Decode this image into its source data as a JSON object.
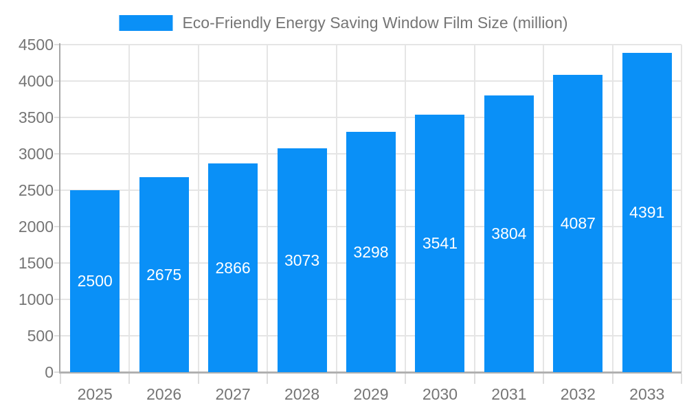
{
  "legend": {
    "label": "Eco-Friendly Energy Saving Window Film Size (million)"
  },
  "chart_data": {
    "type": "bar",
    "title": "Eco-Friendly Energy Saving Window Film Size (million)",
    "categories": [
      "2025",
      "2026",
      "2027",
      "2028",
      "2029",
      "2030",
      "2031",
      "2032",
      "2033"
    ],
    "values": [
      2500,
      2675,
      2866,
      3073,
      3298,
      3541,
      3804,
      4087,
      4391
    ],
    "xlabel": "",
    "ylabel": "",
    "ylim": [
      0,
      4500
    ],
    "yticks": [
      0,
      500,
      1000,
      1500,
      2000,
      2500,
      3000,
      3500,
      4000,
      4500
    ],
    "grid": true,
    "legend_position": "top",
    "bar_color": "#0a90f7",
    "bar_label_color": "#ffffff",
    "axis_text_color": "#757575",
    "grid_color": "#e5e5e5",
    "axis_line_color": "#a6a6a6"
  }
}
